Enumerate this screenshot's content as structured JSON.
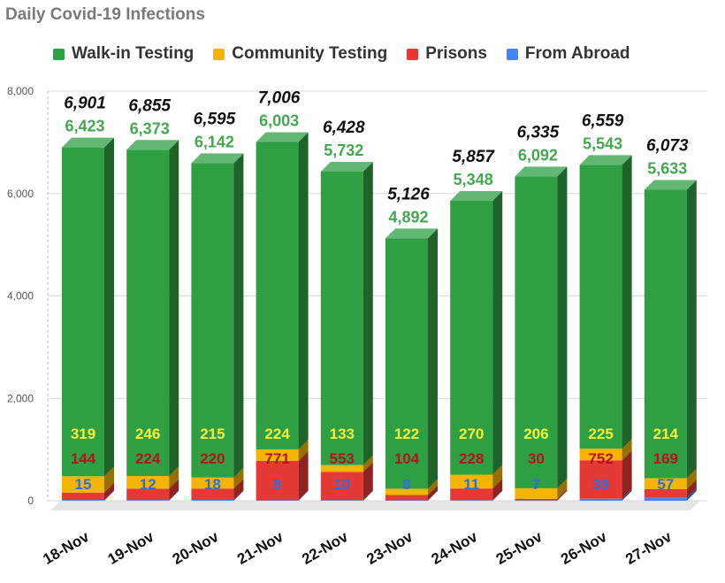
{
  "chart_data": {
    "type": "bar",
    "stacked": true,
    "title": "Daily Covid-19 Infections",
    "categories": [
      "18-Nov",
      "19-Nov",
      "20-Nov",
      "21-Nov",
      "22-Nov",
      "23-Nov",
      "24-Nov",
      "25-Nov",
      "26-Nov",
      "27-Nov"
    ],
    "series": [
      {
        "name": "Walk-in Testing",
        "color": "#2ea043",
        "values": [
          6423,
          6373,
          6142,
          6003,
          5732,
          4892,
          5348,
          6092,
          5543,
          5633
        ]
      },
      {
        "name": "Community Testing",
        "color": "#f4b400",
        "values": [
          319,
          246,
          215,
          224,
          133,
          122,
          270,
          206,
          225,
          214
        ]
      },
      {
        "name": "Prisons",
        "color": "#e53935",
        "values": [
          144,
          224,
          220,
          771,
          553,
          104,
          228,
          30,
          752,
          169
        ]
      },
      {
        "name": "From Abroad",
        "color": "#4285f4",
        "values": [
          15,
          12,
          18,
          8,
          10,
          8,
          11,
          7,
          39,
          57
        ]
      }
    ],
    "totals": [
      6901,
      6855,
      6595,
      7006,
      6428,
      5126,
      5857,
      6335,
      6559,
      6073
    ],
    "yticks": [
      "0",
      "2,000",
      "4,000",
      "6,000",
      "8,000"
    ],
    "ylim": [
      0,
      8000
    ],
    "grid": true,
    "legend_position": "top"
  }
}
